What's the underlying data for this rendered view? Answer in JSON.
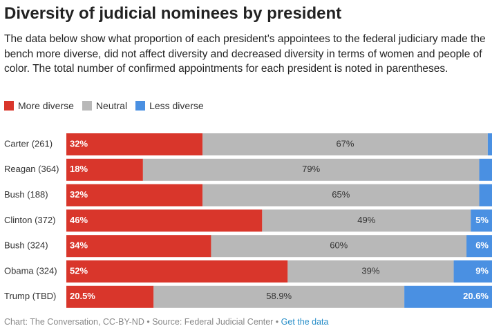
{
  "chart_data": {
    "type": "stacked-bar",
    "title": "Diversity of judicial nominees by president",
    "subtitle": "The data below show what proportion of each president's appointees to the federal judiciary made the bench more diverse, did not affect diversity and decreased diversity in terms of women and people of color. The total number of confirmed appointments for each president is noted in parentheses.",
    "categories": [
      "Carter (261)",
      "Reagan (364)",
      "Bush (188)",
      "Clinton (372)",
      "Bush (324)",
      "Obama (324)",
      "Trump (TBD)"
    ],
    "xlim": [
      0,
      100
    ],
    "series": [
      {
        "name": "More diverse",
        "color": "#d9362b",
        "values": [
          32,
          18,
          32,
          46,
          34,
          52,
          20.5
        ],
        "value_labels": [
          "32%",
          "18%",
          "32%",
          "46%",
          "34%",
          "52%",
          "20.5%"
        ]
      },
      {
        "name": "Neutral",
        "color": "#b8b8b8",
        "values": [
          67,
          79,
          65,
          49,
          60,
          39,
          58.9
        ],
        "value_labels": [
          "67%",
          "79%",
          "65%",
          "49%",
          "60%",
          "39%",
          "58.9%"
        ]
      },
      {
        "name": "Less diverse",
        "color": "#4a90e2",
        "values": [
          1,
          3,
          3,
          5,
          6,
          9,
          20.6
        ],
        "value_labels": [
          null,
          null,
          null,
          "5%",
          "6%",
          "9%",
          "20.6%"
        ]
      }
    ],
    "footer": {
      "credit": "Chart: The Conversation, CC-BY-ND",
      "separator": "•",
      "source": "Source: Federal Judicial Center",
      "link": "Get the data"
    }
  }
}
